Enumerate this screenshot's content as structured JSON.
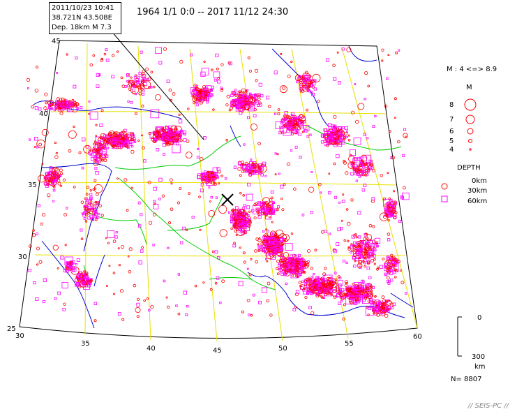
{
  "title": "1964 1/1 0:0 -- 2017 11/12 24:30",
  "event_box": {
    "line1": "2011/10/23 10:41",
    "line2": "38.721N  43.508E",
    "line3": "Dep. 18km    M 7.3"
  },
  "map": {
    "lat_labels": [
      "45",
      "40",
      "35",
      "30",
      "25"
    ],
    "lon_labels": [
      "30",
      "35",
      "40",
      "45",
      "50",
      "55",
      "60"
    ],
    "colors": {
      "shallow": "#ff0000",
      "intermediate": "#ff00ff",
      "border": "#00cc00",
      "coast": "#0000cc",
      "grid": "#e8e000"
    },
    "event_marker": "x"
  },
  "legend": {
    "magnitude_range": "M : 4 <=> 8.9",
    "magnitude_title": "M",
    "magnitudes": [
      "8",
      "7",
      "6",
      "5",
      "4"
    ],
    "depth_title": "DEPTH",
    "depths": [
      "0km",
      "30km",
      "60km"
    ],
    "scale_top": "0",
    "scale_bottom": "300",
    "scale_unit": "km",
    "count": "N= 8807"
  },
  "credit": "// SEIS-PC //"
}
